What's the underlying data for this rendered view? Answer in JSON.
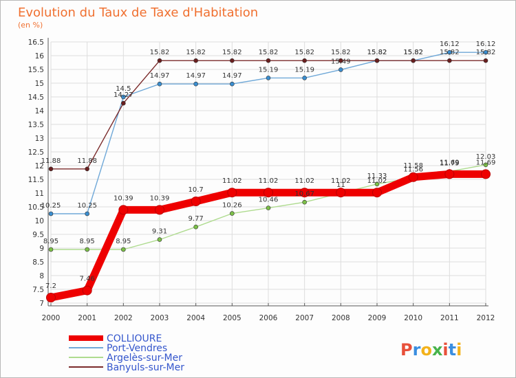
{
  "colors": {
    "title": "#f07030",
    "legend_text": "#3355cc",
    "grid": "#dddddd",
    "axis": "#555555",
    "logo": [
      "#e8503a",
      "#3a8ee0",
      "#f3b21b",
      "#47b34b",
      "#e8503a",
      "#3a8ee0",
      "#f3b21b"
    ]
  },
  "logo": {
    "text": "Proxiti",
    "letters": [
      "P",
      "r",
      "o",
      "x",
      "i",
      "t",
      "i"
    ]
  },
  "chart_data": {
    "type": "line",
    "title": "Evolution du Taux de Taxe d'Habitation",
    "subtitle": "(en %)",
    "x": [
      "2000",
      "2001",
      "2002",
      "2003",
      "2004",
      "2005",
      "2006",
      "2007",
      "2008",
      "2009",
      "2010",
      "2011",
      "2012"
    ],
    "ylim": [
      7,
      16.5
    ],
    "yticks": [
      "7",
      "7.5",
      "8",
      "8.5",
      "9",
      "9.5",
      "10",
      "10.5",
      "11",
      "11.5",
      "12",
      "12.5",
      "13",
      "13.5",
      "14",
      "14.5",
      "15",
      "15.5",
      "16",
      "16.5"
    ],
    "grid": true,
    "legend_position": "bottom-left",
    "series": [
      {
        "name": "COLLIOURE",
        "color": "#ee0000",
        "values": [
          7.2,
          7.46,
          10.39,
          10.39,
          10.7,
          11.02,
          11.02,
          11.02,
          11.02,
          11.02,
          11.58,
          11.69,
          11.69
        ],
        "labels": [
          "7.2",
          "7.46",
          "10.39",
          "10.39",
          "10.7",
          "11.02",
          "11.02",
          "11.02",
          "11.02",
          "11.02",
          "11.58",
          "11.69",
          "11.69"
        ]
      },
      {
        "name": "Port-Vendres",
        "color": "#6fa8d8",
        "marker": "#3a8ed0",
        "values": [
          10.25,
          10.25,
          14.5,
          14.97,
          14.97,
          14.97,
          15.19,
          15.19,
          15.49,
          15.82,
          15.82,
          16.12,
          16.12
        ],
        "labels": [
          "10.25",
          "10.25",
          "14.5",
          "14.97",
          "14.97",
          "14.97",
          "15.19",
          "15.19",
          "15.49",
          "15.82",
          "15.82",
          "16.12",
          "16.12"
        ]
      },
      {
        "name": "Argelès-sur-Mer",
        "color": "#aedb8e",
        "marker": "#7cc048",
        "values": [
          8.95,
          8.95,
          8.95,
          9.31,
          9.77,
          10.26,
          10.46,
          10.67,
          11.0,
          11.33,
          11.56,
          11.79,
          12.03
        ],
        "labels": [
          "8.95",
          "8.95",
          "8.95",
          "9.31",
          "9.77",
          "10.26",
          "10.46",
          "10.67",
          "11",
          "11.33",
          "11.56",
          "11.79",
          "12.03"
        ]
      },
      {
        "name": "Banyuls-sur-Mer",
        "color": "#7a2a2a",
        "marker": "#6a1f1f",
        "values": [
          11.88,
          11.88,
          14.27,
          15.82,
          15.82,
          15.82,
          15.82,
          15.82,
          15.82,
          15.82,
          15.82,
          15.82,
          15.82
        ],
        "labels": [
          "11.88",
          "11.88",
          "14.27",
          "15.82",
          "15.82",
          "15.82",
          "15.82",
          "15.82",
          "15.82",
          "15.82",
          "15.82",
          "15.82",
          "15.82"
        ]
      }
    ]
  }
}
